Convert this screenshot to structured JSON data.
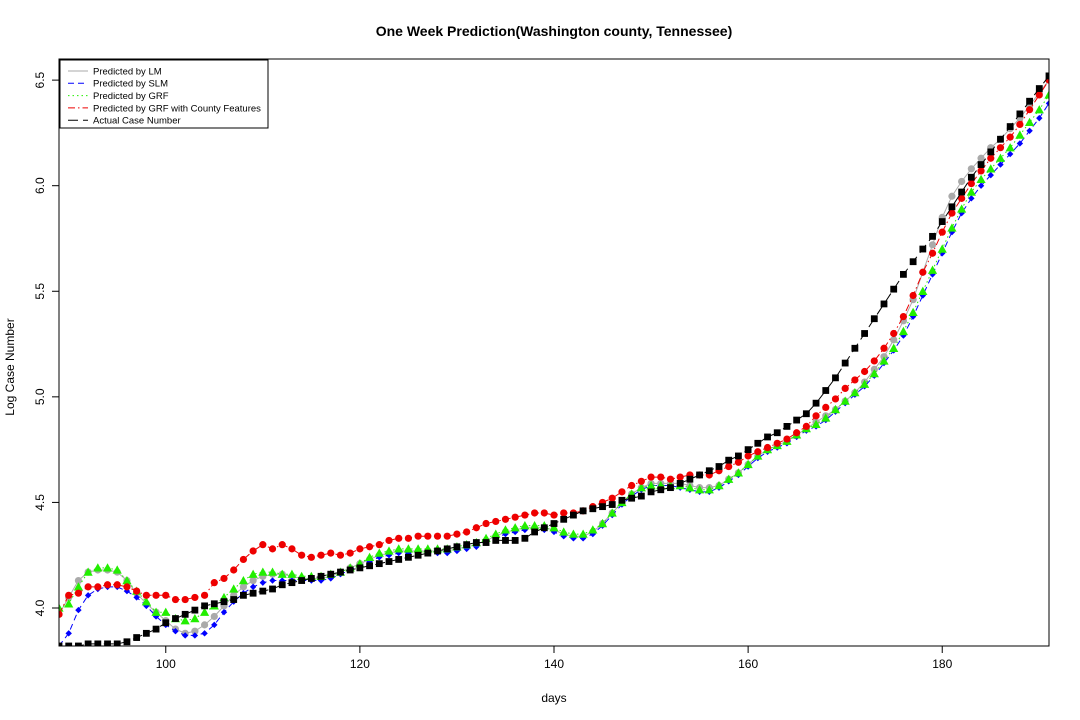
{
  "chart_data": {
    "type": "scatter",
    "title": "One Week Prediction(Washington county, Tennessee)",
    "xlabel": "days",
    "ylabel": "Log Case Number",
    "xlim": [
      89,
      191
    ],
    "ylim": [
      3.82,
      6.6
    ],
    "x_ticks": [
      100,
      120,
      140,
      160,
      180
    ],
    "y_ticks": [
      4.0,
      4.5,
      5.0,
      5.5,
      6.0,
      6.5
    ],
    "x_tick_labels": [
      "100",
      "120",
      "140",
      "160",
      "180"
    ],
    "y_tick_labels": [
      "4.0",
      "4.5",
      "5.0",
      "5.5",
      "6.0",
      "6.5"
    ],
    "grid": false,
    "legend_position": "top-left",
    "x": [
      89,
      90,
      91,
      92,
      93,
      94,
      95,
      96,
      97,
      98,
      99,
      100,
      101,
      102,
      103,
      104,
      105,
      106,
      107,
      108,
      109,
      110,
      111,
      112,
      113,
      114,
      115,
      116,
      117,
      118,
      119,
      120,
      121,
      122,
      123,
      124,
      125,
      126,
      127,
      128,
      129,
      130,
      131,
      132,
      133,
      134,
      135,
      136,
      137,
      138,
      139,
      140,
      141,
      142,
      143,
      144,
      145,
      146,
      147,
      148,
      149,
      150,
      151,
      152,
      153,
      154,
      155,
      156,
      157,
      158,
      159,
      160,
      161,
      162,
      163,
      164,
      165,
      166,
      167,
      168,
      169,
      170,
      171,
      172,
      173,
      174,
      175,
      176,
      177,
      178,
      179,
      180,
      181,
      182,
      183,
      184,
      185,
      186,
      187,
      188,
      189,
      190,
      191
    ],
    "series": [
      {
        "name": "Predicted by LM",
        "color": "#aaaaaa",
        "line_style": "solid",
        "marker": "circle",
        "values": [
          3.97,
          4.05,
          4.13,
          4.17,
          4.18,
          4.18,
          4.17,
          4.13,
          4.07,
          4.02,
          3.98,
          3.94,
          3.9,
          3.88,
          3.89,
          3.92,
          3.96,
          4.01,
          4.06,
          4.1,
          4.13,
          4.15,
          4.16,
          4.16,
          4.15,
          4.14,
          4.14,
          4.14,
          4.15,
          4.17,
          4.19,
          4.21,
          4.23,
          4.25,
          4.26,
          4.27,
          4.27,
          4.27,
          4.27,
          4.27,
          4.27,
          4.28,
          4.29,
          4.3,
          4.32,
          4.34,
          4.36,
          4.37,
          4.38,
          4.38,
          4.38,
          4.37,
          4.35,
          4.34,
          4.34,
          4.36,
          4.4,
          4.45,
          4.5,
          4.54,
          4.57,
          4.59,
          4.59,
          4.59,
          4.59,
          4.58,
          4.57,
          4.57,
          4.58,
          4.61,
          4.64,
          4.68,
          4.72,
          4.75,
          4.77,
          4.79,
          4.82,
          4.85,
          4.88,
          4.91,
          4.94,
          4.98,
          5.02,
          5.07,
          5.13,
          5.19,
          5.27,
          5.36,
          5.46,
          5.59,
          5.72,
          5.85,
          5.95,
          6.02,
          6.08,
          6.13,
          6.18,
          6.22,
          6.27,
          6.32,
          6.38,
          6.44,
          6.5
        ]
      },
      {
        "name": "Predicted by SLM",
        "color": "#0000ff",
        "line_style": "dashed",
        "marker": "diamond",
        "values": [
          3.82,
          3.88,
          3.99,
          4.06,
          4.09,
          4.1,
          4.1,
          4.08,
          4.05,
          4.01,
          3.96,
          3.92,
          3.89,
          3.87,
          3.87,
          3.88,
          3.92,
          3.98,
          4.03,
          4.07,
          4.1,
          4.12,
          4.13,
          4.13,
          4.13,
          4.13,
          4.13,
          4.13,
          4.14,
          4.16,
          4.18,
          4.2,
          4.22,
          4.24,
          4.25,
          4.26,
          4.26,
          4.26,
          4.26,
          4.26,
          4.26,
          4.27,
          4.28,
          4.29,
          4.31,
          4.33,
          4.35,
          4.36,
          4.37,
          4.37,
          4.37,
          4.36,
          4.34,
          4.33,
          4.33,
          4.35,
          4.39,
          4.44,
          4.49,
          4.53,
          4.56,
          4.58,
          4.58,
          4.58,
          4.57,
          4.56,
          4.55,
          4.55,
          4.57,
          4.6,
          4.63,
          4.67,
          4.71,
          4.74,
          4.76,
          4.78,
          4.81,
          4.84,
          4.86,
          4.89,
          4.93,
          4.97,
          5.01,
          5.05,
          5.1,
          5.16,
          5.22,
          5.29,
          5.38,
          5.48,
          5.58,
          5.68,
          5.78,
          5.87,
          5.94,
          6.0,
          6.05,
          6.1,
          6.15,
          6.2,
          6.26,
          6.32,
          6.39
        ]
      },
      {
        "name": "Predicted by GRF",
        "color": "#22ee00",
        "line_style": "dotted",
        "marker": "triangle",
        "values": [
          4.0,
          4.02,
          4.1,
          4.17,
          4.19,
          4.19,
          4.18,
          4.13,
          4.08,
          4.03,
          3.98,
          3.98,
          3.95,
          3.94,
          3.95,
          3.98,
          4.01,
          4.05,
          4.09,
          4.13,
          4.16,
          4.17,
          4.17,
          4.16,
          4.16,
          4.15,
          4.15,
          4.15,
          4.16,
          4.17,
          4.19,
          4.21,
          4.24,
          4.26,
          4.27,
          4.28,
          4.28,
          4.28,
          4.28,
          4.28,
          4.28,
          4.29,
          4.3,
          4.31,
          4.33,
          4.35,
          4.37,
          4.38,
          4.39,
          4.39,
          4.39,
          4.38,
          4.36,
          4.35,
          4.35,
          4.37,
          4.4,
          4.45,
          4.5,
          4.54,
          4.57,
          4.58,
          4.58,
          4.58,
          4.58,
          4.57,
          4.56,
          4.56,
          4.58,
          4.61,
          4.64,
          4.68,
          4.72,
          4.75,
          4.77,
          4.79,
          4.82,
          4.85,
          4.87,
          4.9,
          4.94,
          4.98,
          5.02,
          5.06,
          5.11,
          5.17,
          5.23,
          5.31,
          5.4,
          5.5,
          5.6,
          5.7,
          5.8,
          5.89,
          5.97,
          6.03,
          6.08,
          6.13,
          6.18,
          6.24,
          6.3,
          6.36,
          6.43
        ]
      },
      {
        "name": "Predicted by GRF with County Features",
        "color": "#ee0000",
        "line_style": "dashdot",
        "marker": "circle",
        "values": [
          3.97,
          4.06,
          4.07,
          4.1,
          4.1,
          4.11,
          4.11,
          4.1,
          4.08,
          4.06,
          4.06,
          4.06,
          4.04,
          4.04,
          4.05,
          4.06,
          4.12,
          4.14,
          4.18,
          4.23,
          4.27,
          4.3,
          4.28,
          4.3,
          4.28,
          4.25,
          4.24,
          4.25,
          4.26,
          4.25,
          4.26,
          4.28,
          4.29,
          4.3,
          4.32,
          4.33,
          4.33,
          4.34,
          4.34,
          4.34,
          4.34,
          4.35,
          4.36,
          4.38,
          4.4,
          4.41,
          4.42,
          4.43,
          4.44,
          4.45,
          4.45,
          4.44,
          4.45,
          4.45,
          4.46,
          4.48,
          4.5,
          4.52,
          4.55,
          4.58,
          4.6,
          4.62,
          4.62,
          4.61,
          4.62,
          4.63,
          4.63,
          4.63,
          4.65,
          4.67,
          4.69,
          4.72,
          4.74,
          4.76,
          4.78,
          4.8,
          4.83,
          4.86,
          4.91,
          4.95,
          4.99,
          5.04,
          5.08,
          5.12,
          5.17,
          5.23,
          5.3,
          5.38,
          5.48,
          5.59,
          5.68,
          5.78,
          5.87,
          5.94,
          6.01,
          6.07,
          6.13,
          6.18,
          6.23,
          6.29,
          6.36,
          6.43,
          6.5
        ]
      },
      {
        "name": "Actual Case Number",
        "color": "#000000",
        "line_style": "longdash",
        "marker": "square",
        "values": [
          3.82,
          3.82,
          3.82,
          3.83,
          3.83,
          3.83,
          3.83,
          3.84,
          3.86,
          3.88,
          3.9,
          3.93,
          3.95,
          3.97,
          3.99,
          4.01,
          4.02,
          4.03,
          4.04,
          4.06,
          4.07,
          4.08,
          4.09,
          4.11,
          4.12,
          4.13,
          4.14,
          4.15,
          4.16,
          4.17,
          4.18,
          4.19,
          4.2,
          4.21,
          4.22,
          4.23,
          4.24,
          4.25,
          4.26,
          4.27,
          4.28,
          4.29,
          4.3,
          4.31,
          4.31,
          4.32,
          4.32,
          4.32,
          4.33,
          4.36,
          4.38,
          4.4,
          4.42,
          4.44,
          4.46,
          4.47,
          4.48,
          4.49,
          4.51,
          4.52,
          4.53,
          4.55,
          4.56,
          4.57,
          4.59,
          4.61,
          4.63,
          4.65,
          4.67,
          4.7,
          4.72,
          4.75,
          4.78,
          4.81,
          4.83,
          4.86,
          4.89,
          4.92,
          4.97,
          5.03,
          5.09,
          5.16,
          5.23,
          5.3,
          5.37,
          5.44,
          5.51,
          5.58,
          5.64,
          5.7,
          5.76,
          5.83,
          5.9,
          5.97,
          6.04,
          6.1,
          6.16,
          6.22,
          6.28,
          6.34,
          6.4,
          6.46,
          6.52
        ]
      }
    ]
  }
}
